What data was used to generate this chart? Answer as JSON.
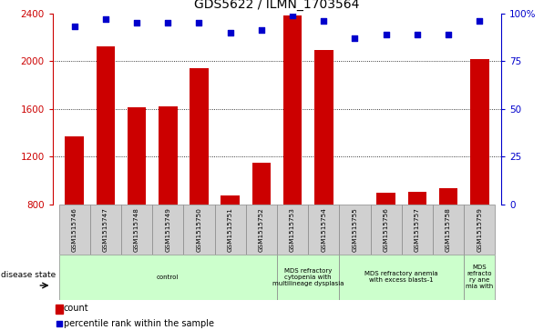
{
  "title": "GDS5622 / ILMN_1703564",
  "samples": [
    "GSM1515746",
    "GSM1515747",
    "GSM1515748",
    "GSM1515749",
    "GSM1515750",
    "GSM1515751",
    "GSM1515752",
    "GSM1515753",
    "GSM1515754",
    "GSM1515755",
    "GSM1515756",
    "GSM1515757",
    "GSM1515758",
    "GSM1515759"
  ],
  "counts": [
    1370,
    2120,
    1610,
    1625,
    1940,
    880,
    1150,
    2380,
    2090,
    790,
    900,
    910,
    940,
    2020
  ],
  "percentile_ranks": [
    93,
    97,
    95,
    95,
    95,
    90,
    91,
    99,
    96,
    87,
    89,
    89,
    89,
    96
  ],
  "bar_color": "#cc0000",
  "dot_color": "#0000cc",
  "ylim_left": [
    800,
    2400
  ],
  "ylim_right": [
    0,
    100
  ],
  "yticks_left": [
    800,
    1200,
    1600,
    2000,
    2400
  ],
  "yticks_right": [
    0,
    25,
    50,
    75,
    100
  ],
  "ytick_right_labels": [
    "0",
    "25",
    "50",
    "75",
    "100%"
  ],
  "grid_values": [
    1200,
    1600,
    2000
  ],
  "group_boundaries": [
    [
      0,
      7,
      "control"
    ],
    [
      7,
      9,
      "MDS refractory\ncytopenia with\nmultilineage dysplasia"
    ],
    [
      9,
      13,
      "MDS refractory anemia\nwith excess blasts-1"
    ],
    [
      13,
      14,
      "MDS\nrefracto\nry ane\nmia with"
    ]
  ],
  "disease_state_label": "disease state",
  "legend_count_label": "count",
  "legend_pct_label": "percentile rank within the sample",
  "background_color": "#ffffff",
  "tick_bg_color": "#d0d0d0",
  "disease_bg_color": "#ccffcc"
}
